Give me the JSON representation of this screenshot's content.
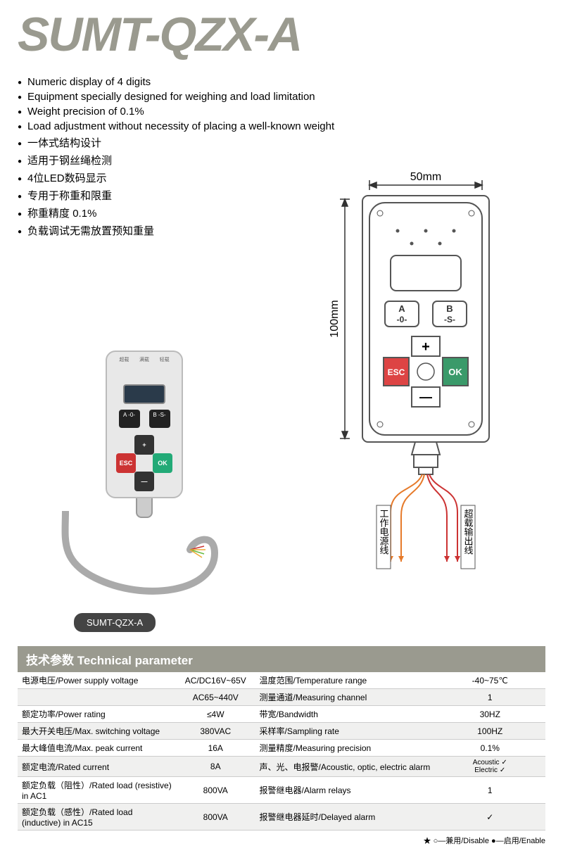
{
  "title": "SUMT-QZX-A",
  "bullets": [
    "Numeric display of 4 digits",
    "Equipment specially designed for weighing and load limitation",
    "Weight precision of  0.1%",
    "Load adjustment without  necessity of placing a  well-known weight",
    "一体式结构设计",
    "适用于钢丝绳检测",
    "4位LED数码显示",
    "专用于称重和限重",
    "称重精度 0.1%",
    "负载调试无需放置预知重量"
  ],
  "device": {
    "button_a": "A\n-0-",
    "button_b": "B\n-S-",
    "esc": "ESC",
    "ok": "OK",
    "plus": "+",
    "minus": "—",
    "badge": "SUMT-QZX-A"
  },
  "diagram": {
    "width_label": "50mm",
    "height_label": "100mm",
    "wire1": "工作电源线",
    "wire2": "超载输出线",
    "colors": {
      "outline": "#555",
      "dim": "#333",
      "wire_orange": "#e67a2a",
      "wire_red": "#c33",
      "esc_btn": "#d44",
      "ok_btn": "#3a9a6a"
    }
  },
  "section_header": "技术参数 Technical parameter",
  "spec_rows": [
    {
      "l": "电源电压/Power supply voltage",
      "lv": "AC/DC16V~65V",
      "r": "温度范围/Temperature range",
      "rv": "-40~75℃",
      "alt": false
    },
    {
      "l": "",
      "lv": "AC65~440V",
      "r": "测量通道/Measuring channel",
      "rv": "1",
      "alt": true
    },
    {
      "l": "额定功率/Power rating",
      "lv": "≤4W",
      "r": "带宽/Bandwidth",
      "rv": "30HZ",
      "alt": false
    },
    {
      "l": "最大开关电压/Max. switching voltage",
      "lv": "380VAC",
      "r": "采样率/Sampling rate",
      "rv": "100HZ",
      "alt": true
    },
    {
      "l": "最大峰值电流/Max. peak current",
      "lv": "16A",
      "r": "测量精度/Measuring precision",
      "rv": "0.1%",
      "alt": false
    },
    {
      "l": "额定电流/Rated current",
      "lv": "8A",
      "r": "声、光、电报警/Acoustic, optic, electric alarm",
      "rv": "Acoustic ✓\nElectric ✓",
      "alt": true
    },
    {
      "l": "额定负载（阻性）/Rated load (resistive) in AC1",
      "lv": "800VA",
      "r": "报警继电器/Alarm relays",
      "rv": "1",
      "alt": false
    },
    {
      "l": "额定负载（感性）/Rated load (inductive) in AC15",
      "lv": "800VA",
      "r": "报警继电器延时/Delayed alarm",
      "rv": "✓",
      "alt": true
    }
  ],
  "legend": "★ ○—兼用/Disable    ●—启用/Enable"
}
